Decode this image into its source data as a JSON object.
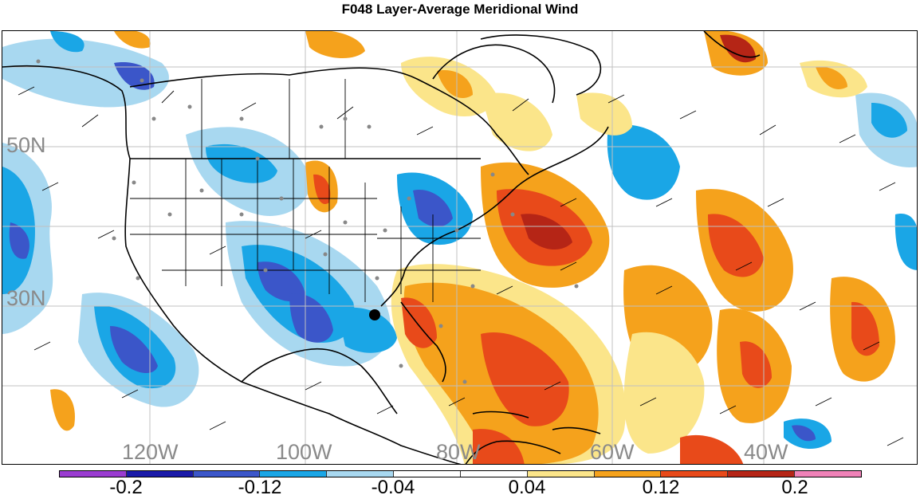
{
  "title": "F048 Layer-Average Meridional Wind",
  "lat_labels": [
    "50N",
    "30N"
  ],
  "lon_labels": [
    "120W",
    "100W",
    "80W",
    "60W",
    "40W"
  ],
  "colorbar": {
    "colors": [
      "#9a3cd1",
      "#1a1aa8",
      "#3b56c9",
      "#1aa6e6",
      "#a8d8f0",
      "#ffffff",
      "#ffffff",
      "#fbe58a",
      "#f5a21c",
      "#e84a1a",
      "#b52516",
      "#ef82b8"
    ],
    "labels": [
      "-0.2",
      "-0.12",
      "-0.04",
      "0.04",
      "0.12",
      "0.2"
    ]
  }
}
